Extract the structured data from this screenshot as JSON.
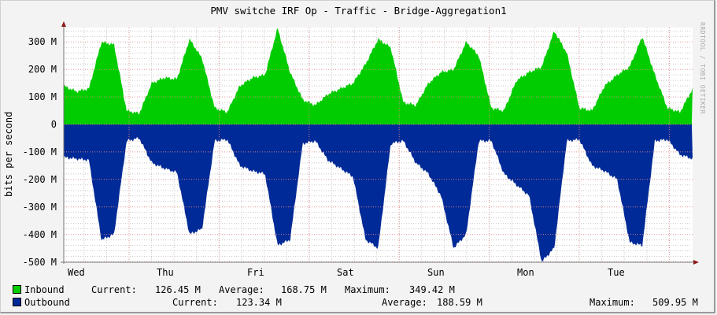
{
  "title": "PMV switche IRF Op - Traffic - Bridge-Aggregation1",
  "watermark": "RRDTOOL / TOBI OETIKER",
  "colors": {
    "inbound": "#00cc00",
    "outbound": "#002a97",
    "grid_major": "#e08a8a",
    "grid_minor": "#c8c8c8",
    "background": "#f3f3f3",
    "plot_bg": "#ffffff"
  },
  "chart_data": {
    "type": "area",
    "title": "PMV switche IRF Op - Traffic - Bridge-Aggregation1",
    "xlabel": "",
    "ylabel": "bits per second",
    "ylim": [
      -500000000,
      350000000
    ],
    "y_ticks": [
      "300 M",
      "200 M",
      "100 M",
      "0",
      "-100 M",
      "-200 M",
      "-300 M",
      "-400 M",
      "-500 M"
    ],
    "x_ticks": [
      "Wed",
      "Thu",
      "Fri",
      "Sat",
      "Sun",
      "Mon",
      "Tue"
    ],
    "grid": true,
    "legend_position": "bottom",
    "series": [
      {
        "name": "Inbound",
        "color": "#00cc00",
        "direction": "positive",
        "current": "126.45 M",
        "average": "168.75 M",
        "maximum": "349.42 M",
        "approx_daily_pattern_M": [
          140,
          120,
          130,
          300,
          290,
          50,
          40,
          150,
          170,
          165,
          310,
          240,
          60,
          45,
          140,
          170,
          180,
          350,
          190,
          90,
          70,
          110,
          130,
          150,
          220,
          310,
          280,
          80,
          70,
          150,
          190,
          200,
          300,
          250,
          60,
          50,
          160,
          190,
          210,
          340,
          260,
          60,
          50,
          140,
          180,
          210,
          320,
          180,
          60,
          45,
          130
        ]
      },
      {
        "name": "Outbound",
        "color": "#002a97",
        "direction": "negative",
        "current": "123.34 M",
        "average": "188.59 M",
        "maximum": "509.95 M",
        "approx_daily_pattern_M": [
          -120,
          -125,
          -130,
          -420,
          -400,
          -60,
          -50,
          -140,
          -160,
          -175,
          -400,
          -380,
          -60,
          -55,
          -150,
          -170,
          -180,
          -440,
          -420,
          -70,
          -60,
          -130,
          -160,
          -190,
          -420,
          -450,
          -70,
          -60,
          -140,
          -180,
          -260,
          -450,
          -400,
          -60,
          -60,
          -180,
          -220,
          -260,
          -500,
          -450,
          -60,
          -55,
          -150,
          -170,
          -200,
          -430,
          -440,
          -60,
          -55,
          -110,
          -125
        ]
      }
    ]
  },
  "axis": {
    "y_labels": [
      "300 M",
      "200 M",
      "100 M",
      "0",
      "-100 M",
      "-200 M",
      "-300 M",
      "-400 M",
      "-500 M"
    ],
    "x_labels": [
      "Wed",
      "Thu",
      "Fri",
      "Sat",
      "Sun",
      "Mon",
      "Tue"
    ]
  },
  "legend": {
    "inbound": {
      "label": "Inbound",
      "current_label": "Current:",
      "current": "126.45 M",
      "average_label": "Average:",
      "average": "168.75 M",
      "maximum_label": "Maximum:",
      "maximum": "349.42 M"
    },
    "outbound": {
      "label": "Outbound",
      "current_label": "Current:",
      "current": "123.34 M",
      "average_label": "Average:",
      "average": "188.59 M",
      "maximum_label": "Maximum:",
      "maximum": "509.95 M"
    }
  }
}
